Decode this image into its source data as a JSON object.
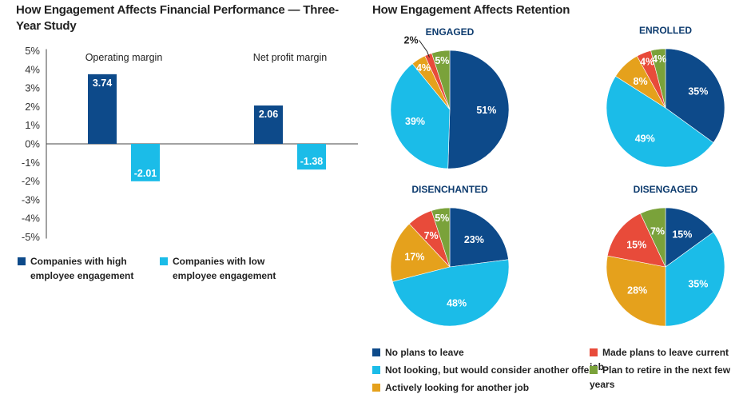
{
  "colors": {
    "high": "#0d4a8a",
    "low": "#1bbce8",
    "no_plans": "#0d4a8a",
    "not_looking": "#1bbce8",
    "actively": "#e5a11c",
    "made_plans": "#e84b3a",
    "retire": "#7aa23a"
  },
  "chart_data": [
    {
      "type": "bar",
      "title": "How Engagement Affects Financial Performance — Three-Year Study",
      "categories": [
        "Operating margin",
        "Net profit margin"
      ],
      "series": [
        {
          "name": "Companies with high employee engagement",
          "values": [
            3.74,
            2.06
          ]
        },
        {
          "name": "Companies with low employee engagement",
          "values": [
            -2.01,
            -1.38
          ]
        }
      ],
      "data_labels": {
        "high": [
          "3.74",
          "2.06"
        ],
        "low": [
          "-2.01",
          "-1.38"
        ]
      },
      "yticks": [
        "5%",
        "4%",
        "3%",
        "2%",
        "1%",
        "0%",
        "-1%",
        "-2%",
        "-3%",
        "-4%",
        "-5%"
      ],
      "ylim": [
        -5,
        5
      ],
      "legend": [
        "Companies with high employee engagement",
        "Companies with low employee engagement"
      ]
    },
    {
      "type": "pie",
      "title": "How Engagement Affects Retention",
      "slice_names": [
        "No plans to leave",
        "Not looking, but would consider another offer",
        "Actively looking for another job",
        "Made plans to leave current job",
        "Plan to retire in the next few years"
      ],
      "pies": [
        {
          "label": "ENGAGED",
          "values": [
            51,
            39,
            4,
            2,
            5
          ],
          "labels": [
            "51%",
            "39%",
            "4%",
            "2%",
            "5%"
          ]
        },
        {
          "label": "ENROLLED",
          "values": [
            35,
            49,
            8,
            4,
            4
          ],
          "labels": [
            "35%",
            "49%",
            "8%",
            "4%",
            "4%"
          ]
        },
        {
          "label": "DISENCHANTED",
          "values": [
            23,
            48,
            17,
            7,
            5
          ],
          "labels": [
            "23%",
            "48%",
            "17%",
            "7%",
            "5%"
          ]
        },
        {
          "label": "DISENGAGED",
          "values": [
            15,
            35,
            28,
            15,
            7
          ],
          "labels": [
            "15%",
            "35%",
            "28%",
            "15%",
            "7%"
          ]
        }
      ],
      "legend": [
        "No plans to leave",
        "Not looking, but would consider another offer",
        "Actively looking for another job",
        "Made plans to leave current job",
        "Plan to retire in the next few years"
      ]
    }
  ]
}
